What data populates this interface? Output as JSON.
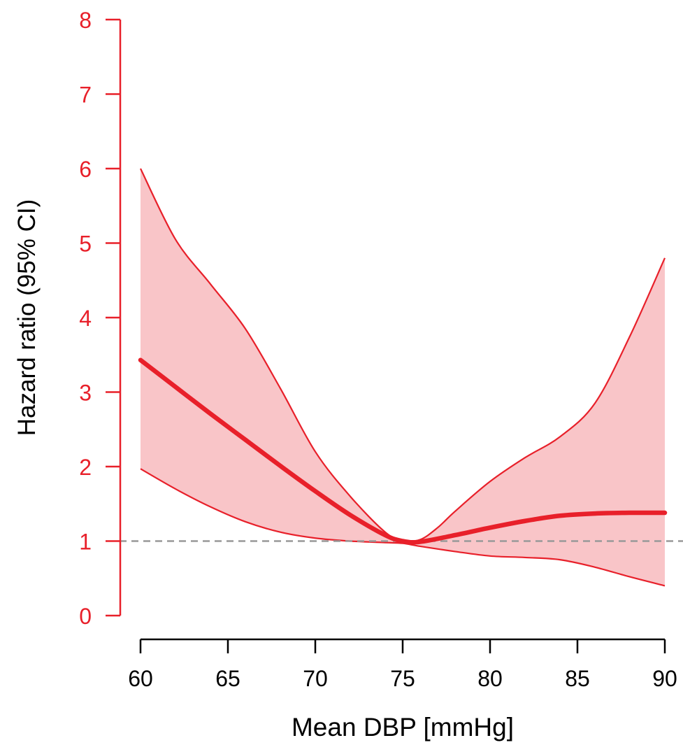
{
  "chart_data": {
    "type": "line",
    "title": "",
    "xlabel": "Mean DBP [mmHg]",
    "ylabel": "Hazard ratio (95% CI)",
    "xlim": [
      60,
      90
    ],
    "ylim": [
      0,
      8
    ],
    "x_ticks": [
      60,
      65,
      70,
      75,
      80,
      85,
      90
    ],
    "y_ticks": [
      0,
      1,
      2,
      3,
      4,
      5,
      6,
      7,
      8
    ],
    "grid": false,
    "legend": "none",
    "reference_line": {
      "y": 1,
      "style": "dashed",
      "color": "#999999"
    },
    "colors": {
      "series": "#e8202a",
      "ci_fill": "#f9c5c8",
      "x_axis": "#000000",
      "y_axis": "#e8202a"
    },
    "series": [
      {
        "role": "estimate",
        "x": [
          60,
          62,
          64,
          66,
          68,
          70,
          72,
          74,
          75,
          76,
          78,
          80,
          82,
          84,
          86,
          88,
          90
        ],
        "y": [
          3.43,
          3.07,
          2.71,
          2.36,
          2.01,
          1.67,
          1.35,
          1.08,
          1.0,
          0.99,
          1.08,
          1.18,
          1.27,
          1.34,
          1.37,
          1.38,
          1.38
        ]
      },
      {
        "role": "ci_upper",
        "x": [
          60,
          62,
          64,
          66,
          68,
          70,
          72,
          74,
          75,
          76,
          77,
          78,
          80,
          82,
          84,
          86,
          88,
          90
        ],
        "y": [
          6.0,
          5.05,
          4.45,
          3.85,
          3.05,
          2.2,
          1.6,
          1.12,
          1.01,
          1.02,
          1.18,
          1.4,
          1.8,
          2.12,
          2.4,
          2.85,
          3.75,
          4.8
        ]
      },
      {
        "role": "ci_lower",
        "x": [
          60,
          62,
          64,
          66,
          68,
          70,
          72,
          74,
          75,
          76,
          78,
          80,
          82,
          84,
          86,
          88,
          90
        ],
        "y": [
          1.97,
          1.7,
          1.46,
          1.26,
          1.12,
          1.04,
          1.0,
          0.98,
          0.97,
          0.93,
          0.86,
          0.8,
          0.78,
          0.75,
          0.65,
          0.52,
          0.4
        ]
      }
    ]
  }
}
